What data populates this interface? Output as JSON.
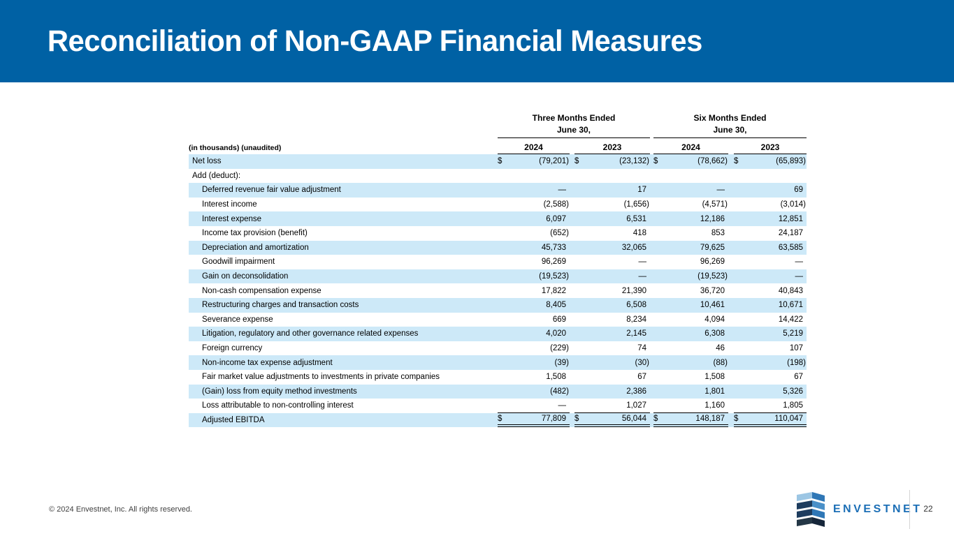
{
  "slide": {
    "title": "Reconciliation of Non-GAAP Financial Measures",
    "footer": {
      "copyright": "© 2024 Envestnet, Inc. All rights reserved.",
      "logo_text": "ENVESTNET",
      "page_number": "22"
    },
    "colors": {
      "band_blue": "#0061a4",
      "row_highlight": "#cde9f8",
      "logo_blue": "#1c6fb6"
    }
  },
  "table": {
    "note": "(in thousands) (unaudited)",
    "groups": [
      {
        "title": "Three Months Ended",
        "subtitle": "June 30,"
      },
      {
        "title": "Six Months Ended",
        "subtitle": "June 30,"
      }
    ],
    "year_headers": [
      "2024",
      "2023",
      "2024",
      "2023"
    ],
    "rows": [
      {
        "label": "Net loss",
        "indent": 0,
        "highlight": true,
        "dollar": true,
        "values": [
          "(79,201)",
          "(23,132)",
          "(78,662)",
          "(65,893)"
        ]
      },
      {
        "label": "Add (deduct):",
        "indent": 0,
        "highlight": false,
        "values": null
      },
      {
        "label": "Deferred revenue fair value adjustment",
        "indent": 1,
        "highlight": true,
        "values": [
          "—",
          "17",
          "—",
          "69"
        ]
      },
      {
        "label": "Interest income",
        "indent": 1,
        "highlight": false,
        "values": [
          "(2,588)",
          "(1,656)",
          "(4,571)",
          "(3,014)"
        ]
      },
      {
        "label": "Interest expense",
        "indent": 1,
        "highlight": true,
        "values": [
          "6,097",
          "6,531",
          "12,186",
          "12,851"
        ]
      },
      {
        "label": "Income tax provision (benefit)",
        "indent": 1,
        "highlight": false,
        "values": [
          "(652)",
          "418",
          "853",
          "24,187"
        ]
      },
      {
        "label": "Depreciation and amortization",
        "indent": 1,
        "highlight": true,
        "values": [
          "45,733",
          "32,065",
          "79,625",
          "63,585"
        ]
      },
      {
        "label": "Goodwill impairment",
        "indent": 1,
        "highlight": false,
        "values": [
          "96,269",
          "—",
          "96,269",
          "—"
        ]
      },
      {
        "label": "Gain on deconsolidation",
        "indent": 1,
        "highlight": true,
        "values": [
          "(19,523)",
          "—",
          "(19,523)",
          "—"
        ]
      },
      {
        "label": "Non-cash compensation expense",
        "indent": 1,
        "highlight": false,
        "values": [
          "17,822",
          "21,390",
          "36,720",
          "40,843"
        ]
      },
      {
        "label": "Restructuring charges and transaction costs",
        "indent": 1,
        "highlight": true,
        "values": [
          "8,405",
          "6,508",
          "10,461",
          "10,671"
        ]
      },
      {
        "label": "Severance expense",
        "indent": 1,
        "highlight": false,
        "values": [
          "669",
          "8,234",
          "4,094",
          "14,422"
        ]
      },
      {
        "label": "Litigation, regulatory and other governance related expenses",
        "indent": 1,
        "highlight": true,
        "values": [
          "4,020",
          "2,145",
          "6,308",
          "5,219"
        ]
      },
      {
        "label": "Foreign currency",
        "indent": 1,
        "highlight": false,
        "values": [
          "(229)",
          "74",
          "46",
          "107"
        ]
      },
      {
        "label": "Non-income tax expense adjustment",
        "indent": 1,
        "highlight": true,
        "values": [
          "(39)",
          "(30)",
          "(88)",
          "(198)"
        ]
      },
      {
        "label": "Fair market value adjustments to investments in private companies",
        "indent": 1,
        "highlight": false,
        "values": [
          "1,508",
          "67",
          "1,508",
          "67"
        ]
      },
      {
        "label": "(Gain) loss from equity method investments",
        "indent": 1,
        "highlight": true,
        "values": [
          "(482)",
          "2,386",
          "1,801",
          "5,326"
        ]
      },
      {
        "label": "Loss attributable to non-controlling interest",
        "indent": 1,
        "highlight": false,
        "values": [
          "—",
          "1,027",
          "1,160",
          "1,805"
        ],
        "rule": "single"
      },
      {
        "label": "Adjusted EBITDA",
        "indent": 1,
        "highlight": true,
        "dollar": true,
        "values": [
          "77,809",
          "56,044",
          "148,187",
          "110,047"
        ],
        "rule": "double"
      }
    ]
  }
}
